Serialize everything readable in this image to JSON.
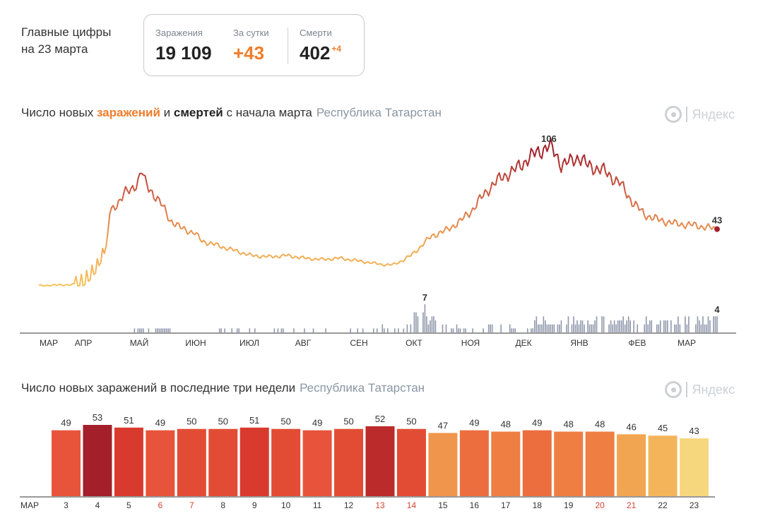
{
  "key_figures": {
    "title_line1": "Главные цифры",
    "title_line2": "на 23 марта",
    "cases_label": "Заражения",
    "cases_value": "19 109",
    "daily_label": "За сутки",
    "daily_value": "+43",
    "deaths_label": "Смерти",
    "deaths_value": "402",
    "deaths_delta": "+4"
  },
  "chart1": {
    "title_part1": "Число новых ",
    "title_highlight1": "заражений",
    "title_part2": " и ",
    "title_highlight2": "смертей",
    "title_part3": " с начала марта",
    "region": "Республика Татарстан",
    "brand": "Яндекс"
  },
  "chart2": {
    "title": "Число новых заражений в последние три недели",
    "region": "Республика Татарстан",
    "brand": "Яндекс"
  },
  "colors": {
    "orange": "#ef7d2b",
    "dark_red": "#a3202b",
    "deaths_bar": "#8f97ab"
  },
  "chart_data": [
    {
      "type": "line",
      "series_name": "заражения",
      "x_ticks": [
        "МАР",
        "АПР",
        "МАЙ",
        "ИЮН",
        "ИЮЛ",
        "АВГ",
        "СЕН",
        "ОКТ",
        "НОЯ",
        "ДЕК",
        "ЯНВ",
        "ФЕВ",
        "МАР"
      ],
      "anchors": [
        [
          0,
          0
        ],
        [
          20,
          1
        ],
        [
          26,
          4
        ],
        [
          30,
          9
        ],
        [
          33,
          15
        ],
        [
          36,
          24
        ],
        [
          39,
          35
        ],
        [
          40,
          55
        ],
        [
          44,
          62
        ],
        [
          48,
          70
        ],
        [
          52,
          72
        ],
        [
          56,
          80
        ],
        [
          58,
          88
        ],
        [
          60,
          78
        ],
        [
          62,
          74
        ],
        [
          66,
          68
        ],
        [
          70,
          60
        ],
        [
          74,
          50
        ],
        [
          80,
          44
        ],
        [
          88,
          40
        ],
        [
          92,
          34
        ],
        [
          100,
          31
        ],
        [
          110,
          27
        ],
        [
          120,
          23
        ],
        [
          130,
          22
        ],
        [
          140,
          23
        ],
        [
          150,
          21
        ],
        [
          160,
          20
        ],
        [
          170,
          21
        ],
        [
          180,
          19
        ],
        [
          190,
          17
        ],
        [
          195,
          16
        ],
        [
          200,
          16
        ],
        [
          205,
          19
        ],
        [
          210,
          23
        ],
        [
          215,
          29
        ],
        [
          218,
          33
        ],
        [
          222,
          38
        ],
        [
          230,
          42
        ],
        [
          238,
          49
        ],
        [
          245,
          58
        ],
        [
          250,
          67
        ],
        [
          255,
          75
        ],
        [
          262,
          83
        ],
        [
          268,
          87
        ],
        [
          275,
          95
        ],
        [
          280,
          100
        ],
        [
          285,
          104
        ],
        [
          288,
          106
        ],
        [
          292,
          100
        ],
        [
          295,
          92
        ],
        [
          300,
          94
        ],
        [
          305,
          98
        ],
        [
          310,
          91
        ],
        [
          318,
          88
        ],
        [
          328,
          78
        ],
        [
          335,
          64
        ],
        [
          342,
          54
        ],
        [
          350,
          50
        ],
        [
          360,
          47
        ],
        [
          370,
          46
        ],
        [
          383,
          43
        ]
      ],
      "labels": [
        {
          "text": "106",
          "day": 288
        },
        {
          "text": "43",
          "day": 383
        }
      ],
      "ylim": [
        0,
        110
      ]
    },
    {
      "type": "bar",
      "series_name": "смерти",
      "label_max": "7",
      "label_last": "4"
    },
    {
      "type": "bar",
      "x_first_label": "МАР",
      "categories": [
        "3",
        "4",
        "5",
        "6",
        "7",
        "8",
        "9",
        "10",
        "11",
        "12",
        "13",
        "14",
        "15",
        "16",
        "17",
        "18",
        "19",
        "20",
        "21",
        "22",
        "23"
      ],
      "values": [
        49,
        53,
        51,
        49,
        50,
        50,
        51,
        50,
        49,
        50,
        52,
        50,
        47,
        49,
        48,
        49,
        48,
        48,
        46,
        45,
        43
      ],
      "weekend": [
        false,
        false,
        false,
        true,
        true,
        false,
        false,
        false,
        false,
        false,
        true,
        true,
        false,
        false,
        false,
        false,
        false,
        true,
        true,
        false,
        false
      ],
      "bar_colors": [
        "#e8543b",
        "#a3202b",
        "#d93a2e",
        "#e8543b",
        "#e24c35",
        "#e24c35",
        "#d93a2e",
        "#e24c35",
        "#e8543b",
        "#e24c35",
        "#bb2b2b",
        "#e24c35",
        "#f0954c",
        "#ec6e3e",
        "#ee7e42",
        "#ec6e3e",
        "#ee7e42",
        "#ee7e42",
        "#f2a550",
        "#f4b55a",
        "#f7d77e"
      ],
      "ylim": [
        0,
        55
      ]
    }
  ]
}
